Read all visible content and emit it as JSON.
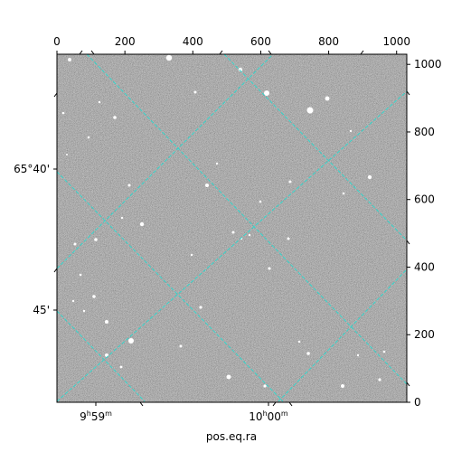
{
  "figure": {
    "xlabel": "pos.eq.ra",
    "pixel_axes": {
      "x_range": [
        0,
        1030
      ],
      "y_range": [
        0,
        1030
      ],
      "x_ticks": [
        "0",
        "200",
        "400",
        "600",
        "800",
        "1000"
      ],
      "x_tick_values": [
        0,
        200,
        400,
        600,
        800,
        1000
      ],
      "y_ticks": [
        "0",
        "200",
        "400",
        "600",
        "800",
        "1000"
      ],
      "y_tick_values": [
        0,
        200,
        400,
        600,
        800,
        1000
      ]
    },
    "ra_ticks": [
      {
        "h": "9",
        "h_unit": "h",
        "m": "59",
        "m_unit": "m"
      },
      {
        "h": "10",
        "h_unit": "h",
        "m": "00",
        "m_unit": "m"
      }
    ],
    "dec_ticks": [
      "65°40'",
      "45'"
    ],
    "grid_color": "#33d6cc",
    "image_type": "grayscale astronomical field with coordinate grid overlay"
  }
}
